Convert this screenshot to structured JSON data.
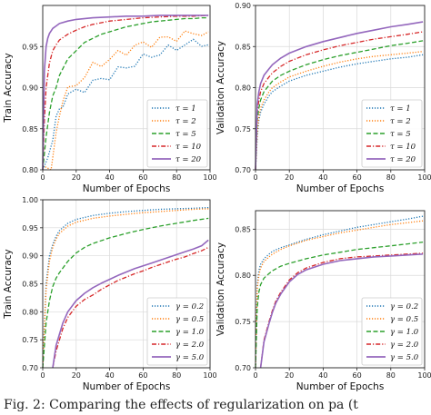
{
  "caption": "Fig. 2: Comparing the effects of regularization on pa (t",
  "chart_data": [
    {
      "type": "line",
      "panel": "top-left",
      "xlabel": "Number of Epochs",
      "ylabel": "Train Accuracy",
      "xlim": [
        0,
        100
      ],
      "ylim": [
        0.8,
        1.0
      ],
      "xticks": [
        "0",
        "20",
        "40",
        "60",
        "80",
        "100"
      ],
      "yticks": [
        "0.80",
        "0.85",
        "0.90",
        "0.95"
      ],
      "ytick_values": [
        0.8,
        0.85,
        0.9,
        0.95
      ],
      "grid": true,
      "legend_position": "lower-right",
      "series": [
        {
          "name": "τ = 1",
          "color": "#1f77b4",
          "style": "dotted",
          "x": [
            0,
            3,
            6,
            8,
            10,
            12,
            15,
            20,
            25,
            30,
            35,
            40,
            45,
            50,
            55,
            60,
            65,
            70,
            75,
            80,
            85,
            90,
            95,
            99
          ],
          "y": [
            0.8,
            0.82,
            0.84,
            0.86,
            0.88,
            0.87,
            0.89,
            0.895,
            0.9,
            0.905,
            0.91,
            0.915,
            0.92,
            0.925,
            0.93,
            0.935,
            0.94,
            0.942,
            0.946,
            0.95,
            0.952,
            0.954,
            0.956,
            0.958
          ]
        },
        {
          "name": "τ = 2",
          "color": "#ff7f0e",
          "style": "dotted",
          "x": [
            0,
            5,
            8,
            10,
            12,
            15,
            20,
            25,
            30,
            35,
            40,
            45,
            50,
            55,
            60,
            65,
            70,
            75,
            80,
            85,
            90,
            95,
            99
          ],
          "y": [
            0.8,
            0.8,
            0.84,
            0.87,
            0.88,
            0.895,
            0.905,
            0.915,
            0.925,
            0.93,
            0.935,
            0.94,
            0.945,
            0.95,
            0.952,
            0.955,
            0.958,
            0.96,
            0.962,
            0.964,
            0.966,
            0.968,
            0.97
          ]
        },
        {
          "name": "τ = 5",
          "color": "#2ca02c",
          "style": "dashed",
          "x": [
            0,
            2,
            4,
            6,
            8,
            10,
            15,
            20,
            25,
            30,
            35,
            40,
            45,
            50,
            55,
            60,
            65,
            70,
            75,
            80,
            85,
            90,
            95,
            99
          ],
          "y": [
            0.8,
            0.84,
            0.87,
            0.89,
            0.9,
            0.915,
            0.935,
            0.945,
            0.955,
            0.96,
            0.965,
            0.968,
            0.971,
            0.974,
            0.976,
            0.978,
            0.98,
            0.981,
            0.982,
            0.983,
            0.984,
            0.984,
            0.985,
            0.985
          ]
        },
        {
          "name": "τ = 10",
          "color": "#d62728",
          "style": "dashdot",
          "x": [
            0,
            1,
            2,
            4,
            6,
            8,
            10,
            15,
            20,
            25,
            30,
            40,
            50,
            60,
            70,
            80,
            90,
            99
          ],
          "y": [
            0.8,
            0.86,
            0.9,
            0.93,
            0.945,
            0.952,
            0.958,
            0.965,
            0.97,
            0.974,
            0.977,
            0.981,
            0.983,
            0.985,
            0.986,
            0.987,
            0.987,
            0.988
          ]
        },
        {
          "name": "τ = 20",
          "color": "#9467bd",
          "style": "solid",
          "x": [
            0,
            1,
            2,
            3,
            4,
            6,
            8,
            10,
            15,
            20,
            30,
            40,
            50,
            60,
            70,
            80,
            90,
            99
          ],
          "y": [
            0.8,
            0.92,
            0.95,
            0.96,
            0.966,
            0.972,
            0.975,
            0.978,
            0.981,
            0.983,
            0.985,
            0.986,
            0.987,
            0.987,
            0.988,
            0.988,
            0.988,
            0.988
          ]
        }
      ]
    },
    {
      "type": "line",
      "panel": "top-right",
      "xlabel": "Number of Epochs",
      "ylabel": "Validation Accuracy",
      "xlim": [
        0,
        100
      ],
      "ylim": [
        0.7,
        0.9
      ],
      "xticks": [
        "0",
        "20",
        "40",
        "60",
        "80",
        "100"
      ],
      "yticks": [
        "0.70",
        "0.75",
        "0.80",
        "0.85",
        "0.90"
      ],
      "ytick_values": [
        0.7,
        0.75,
        0.8,
        0.85,
        0.9
      ],
      "grid": true,
      "legend_position": "lower-right",
      "series": [
        {
          "name": "τ = 1",
          "color": "#1f77b4",
          "style": "dotted",
          "x": [
            0,
            1,
            2,
            3,
            5,
            8,
            10,
            15,
            20,
            30,
            40,
            50,
            60,
            70,
            80,
            90,
            99
          ],
          "y": [
            0.7,
            0.74,
            0.76,
            0.77,
            0.78,
            0.79,
            0.795,
            0.802,
            0.808,
            0.815,
            0.82,
            0.825,
            0.829,
            0.832,
            0.835,
            0.837,
            0.84
          ]
        },
        {
          "name": "τ = 2",
          "color": "#ff7f0e",
          "style": "dotted",
          "x": [
            0,
            1,
            2,
            3,
            5,
            8,
            10,
            15,
            20,
            30,
            40,
            50,
            60,
            70,
            80,
            90,
            99
          ],
          "y": [
            0.7,
            0.745,
            0.765,
            0.775,
            0.785,
            0.795,
            0.8,
            0.807,
            0.813,
            0.82,
            0.826,
            0.831,
            0.835,
            0.838,
            0.84,
            0.842,
            0.844
          ]
        },
        {
          "name": "τ = 5",
          "color": "#2ca02c",
          "style": "dashed",
          "x": [
            0,
            1,
            2,
            3,
            5,
            8,
            10,
            15,
            20,
            30,
            40,
            50,
            60,
            70,
            80,
            90,
            99
          ],
          "y": [
            0.7,
            0.76,
            0.775,
            0.785,
            0.795,
            0.803,
            0.808,
            0.815,
            0.82,
            0.828,
            0.834,
            0.839,
            0.843,
            0.847,
            0.851,
            0.854,
            0.857
          ]
        },
        {
          "name": "τ = 10",
          "color": "#d62728",
          "style": "dashdot",
          "x": [
            0,
            1,
            2,
            3,
            5,
            8,
            10,
            15,
            20,
            30,
            40,
            50,
            60,
            70,
            80,
            90,
            99
          ],
          "y": [
            0.7,
            0.77,
            0.785,
            0.795,
            0.805,
            0.813,
            0.818,
            0.826,
            0.832,
            0.84,
            0.846,
            0.851,
            0.855,
            0.859,
            0.862,
            0.865,
            0.868
          ]
        },
        {
          "name": "τ = 20",
          "color": "#9467bd",
          "style": "solid",
          "x": [
            0,
            1,
            2,
            3,
            5,
            8,
            10,
            15,
            20,
            30,
            40,
            50,
            60,
            70,
            80,
            90,
            99
          ],
          "y": [
            0.7,
            0.78,
            0.795,
            0.805,
            0.815,
            0.823,
            0.828,
            0.836,
            0.842,
            0.85,
            0.856,
            0.861,
            0.866,
            0.87,
            0.874,
            0.877,
            0.88
          ]
        }
      ]
    },
    {
      "type": "line",
      "panel": "bottom-left",
      "xlabel": "Number of Epochs",
      "ylabel": "Train Accuracy",
      "xlim": [
        0,
        100
      ],
      "ylim": [
        0.7,
        1.0
      ],
      "xticks": [
        "0",
        "20",
        "40",
        "60",
        "80",
        "100"
      ],
      "yticks": [
        "0.70",
        "0.75",
        "0.80",
        "0.85",
        "0.90",
        "0.95",
        "1.00"
      ],
      "ytick_values": [
        0.7,
        0.75,
        0.8,
        0.85,
        0.9,
        0.95,
        1.0
      ],
      "grid": true,
      "legend_position": "lower-right",
      "series": [
        {
          "name": "γ = 0.2",
          "color": "#1f77b4",
          "style": "dotted",
          "x": [
            0,
            2,
            4,
            6,
            8,
            10,
            15,
            20,
            30,
            40,
            50,
            60,
            70,
            80,
            90,
            99
          ],
          "y": [
            0.7,
            0.85,
            0.9,
            0.92,
            0.935,
            0.945,
            0.958,
            0.965,
            0.972,
            0.976,
            0.979,
            0.981,
            0.983,
            0.984,
            0.985,
            0.986
          ]
        },
        {
          "name": "γ = 0.5",
          "color": "#ff7f0e",
          "style": "dotted",
          "x": [
            0,
            2,
            4,
            6,
            8,
            10,
            15,
            20,
            30,
            40,
            50,
            60,
            70,
            80,
            90,
            99
          ],
          "y": [
            0.7,
            0.84,
            0.89,
            0.915,
            0.93,
            0.94,
            0.953,
            0.96,
            0.967,
            0.971,
            0.974,
            0.977,
            0.979,
            0.981,
            0.983,
            0.984
          ]
        },
        {
          "name": "γ = 1.0",
          "color": "#2ca02c",
          "style": "dashed",
          "x": [
            0,
            2,
            4,
            6,
            8,
            10,
            15,
            20,
            25,
            30,
            40,
            50,
            60,
            70,
            80,
            90,
            99
          ],
          "y": [
            0.7,
            0.78,
            0.82,
            0.845,
            0.86,
            0.87,
            0.89,
            0.905,
            0.915,
            0.922,
            0.932,
            0.94,
            0.947,
            0.953,
            0.958,
            0.963,
            0.967
          ]
        },
        {
          "name": "γ = 2.0",
          "color": "#d62728",
          "style": "dashdot",
          "x": [
            6,
            8,
            10,
            12,
            15,
            20,
            25,
            30,
            35,
            40,
            45,
            50,
            55,
            60,
            65,
            70,
            75,
            80,
            85,
            90,
            95,
            99
          ],
          "y": [
            0.7,
            0.73,
            0.75,
            0.77,
            0.79,
            0.81,
            0.822,
            0.83,
            0.84,
            0.848,
            0.856,
            0.862,
            0.868,
            0.873,
            0.879,
            0.884,
            0.889,
            0.894,
            0.898,
            0.904,
            0.909,
            0.915
          ]
        },
        {
          "name": "γ = 5.0",
          "color": "#9467bd",
          "style": "solid",
          "x": [
            6,
            8,
            10,
            12,
            15,
            20,
            25,
            30,
            35,
            40,
            45,
            50,
            55,
            60,
            65,
            70,
            75,
            80,
            85,
            90,
            95,
            99
          ],
          "y": [
            0.7,
            0.74,
            0.76,
            0.78,
            0.8,
            0.82,
            0.833,
            0.843,
            0.851,
            0.858,
            0.865,
            0.871,
            0.877,
            0.882,
            0.887,
            0.892,
            0.897,
            0.902,
            0.907,
            0.912,
            0.918,
            0.928
          ]
        }
      ]
    },
    {
      "type": "line",
      "panel": "bottom-right",
      "xlabel": "Number of Epochs",
      "ylabel": "Validation Accuracy",
      "xlim": [
        0,
        100
      ],
      "ylim": [
        0.7,
        0.87
      ],
      "xticks": [
        "0",
        "20",
        "40",
        "60",
        "80",
        "100"
      ],
      "yticks": [
        "0.70",
        "0.75",
        "0.80",
        "0.85"
      ],
      "ytick_values": [
        0.7,
        0.75,
        0.8,
        0.85
      ],
      "grid": true,
      "legend_position": "lower-right",
      "series": [
        {
          "name": "γ = 0.2",
          "color": "#1f77b4",
          "style": "dotted",
          "x": [
            0,
            1,
            2,
            3,
            5,
            8,
            10,
            15,
            20,
            30,
            40,
            50,
            60,
            70,
            80,
            90,
            99
          ],
          "y": [
            0.7,
            0.79,
            0.805,
            0.812,
            0.818,
            0.823,
            0.826,
            0.83,
            0.833,
            0.839,
            0.844,
            0.848,
            0.852,
            0.855,
            0.858,
            0.861,
            0.864
          ]
        },
        {
          "name": "γ = 0.5",
          "color": "#ff7f0e",
          "style": "dotted",
          "x": [
            0,
            1,
            2,
            3,
            5,
            8,
            10,
            15,
            20,
            30,
            40,
            50,
            60,
            70,
            80,
            90,
            99
          ],
          "y": [
            0.7,
            0.785,
            0.8,
            0.808,
            0.815,
            0.82,
            0.823,
            0.828,
            0.832,
            0.838,
            0.842,
            0.846,
            0.849,
            0.852,
            0.855,
            0.857,
            0.859
          ]
        },
        {
          "name": "γ = 1.0",
          "color": "#2ca02c",
          "style": "dashed",
          "x": [
            0,
            1,
            2,
            3,
            5,
            8,
            10,
            15,
            20,
            30,
            40,
            50,
            60,
            70,
            80,
            90,
            99
          ],
          "y": [
            0.7,
            0.765,
            0.782,
            0.79,
            0.797,
            0.802,
            0.805,
            0.81,
            0.813,
            0.818,
            0.822,
            0.825,
            0.828,
            0.83,
            0.832,
            0.834,
            0.836
          ]
        },
        {
          "name": "γ = 2.0",
          "color": "#d62728",
          "style": "dashdot",
          "x": [
            3,
            5,
            8,
            10,
            12,
            15,
            20,
            25,
            30,
            40,
            50,
            60,
            70,
            80,
            90,
            99
          ],
          "y": [
            0.7,
            0.73,
            0.75,
            0.762,
            0.772,
            0.782,
            0.795,
            0.803,
            0.808,
            0.814,
            0.818,
            0.82,
            0.821,
            0.822,
            0.823,
            0.824
          ]
        },
        {
          "name": "γ = 5.0",
          "color": "#9467bd",
          "style": "solid",
          "x": [
            3,
            5,
            8,
            10,
            12,
            15,
            20,
            25,
            30,
            40,
            50,
            60,
            70,
            80,
            90,
            99
          ],
          "y": [
            0.7,
            0.728,
            0.748,
            0.76,
            0.77,
            0.78,
            0.793,
            0.801,
            0.806,
            0.812,
            0.816,
            0.818,
            0.82,
            0.821,
            0.822,
            0.823
          ]
        }
      ]
    }
  ]
}
